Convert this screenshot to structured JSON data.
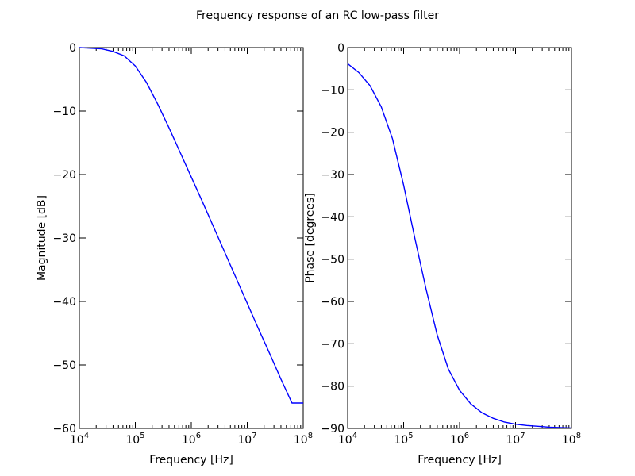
{
  "figure": {
    "title": "Frequency response of an RC low-pass filter"
  },
  "chart_data": [
    {
      "type": "line",
      "xlabel": "Frequency [Hz]",
      "ylabel": "Magnitude [dB]",
      "xscale": "log",
      "xlim": [
        10000,
        100000000
      ],
      "ylim": [
        -60,
        0
      ],
      "xticks": [
        {
          "base": "10",
          "exp": "4"
        },
        {
          "base": "10",
          "exp": "5"
        },
        {
          "base": "10",
          "exp": "6"
        },
        {
          "base": "10",
          "exp": "7"
        },
        {
          "base": "10",
          "exp": "8"
        }
      ],
      "yticks": [
        0,
        -10,
        -20,
        -30,
        -40,
        -50,
        -60
      ],
      "ytick_labels": [
        "0",
        "−10",
        "−20",
        "−30",
        "−40",
        "−50",
        "−60"
      ],
      "grid": false,
      "color": "#0000ff",
      "series": [
        {
          "x": [
            10000,
            15850,
            25120,
            39810,
            63100,
            100000,
            158500,
            251200,
            398100,
            631000,
            1000000,
            1585000,
            2512000,
            3981000,
            6310000,
            10000000,
            15850000,
            25120000,
            39810000,
            63100000,
            100000000
          ],
          "y": [
            -0.0,
            -0.1,
            -0.2,
            -0.6,
            -1.3,
            -2.9,
            -5.5,
            -8.9,
            -12.6,
            -16.5,
            -20.4,
            -24.3,
            -28.3,
            -32.3,
            -36.3,
            -40.3,
            -44.3,
            -48.2,
            -52.2,
            -56.0,
            -56.0
          ]
        }
      ]
    },
    {
      "type": "line",
      "xlabel": "Frequency [Hz]",
      "ylabel": "Phase [degrees]",
      "xscale": "log",
      "xlim": [
        10000,
        100000000
      ],
      "ylim": [
        -90,
        0
      ],
      "xticks": [
        {
          "base": "10",
          "exp": "4"
        },
        {
          "base": "10",
          "exp": "5"
        },
        {
          "base": "10",
          "exp": "6"
        },
        {
          "base": "10",
          "exp": "7"
        },
        {
          "base": "10",
          "exp": "8"
        }
      ],
      "yticks": [
        0,
        -10,
        -20,
        -30,
        -40,
        -50,
        -60,
        -70,
        -80,
        -90
      ],
      "ytick_labels": [
        "0",
        "−10",
        "−20",
        "−30",
        "−40",
        "−50",
        "−60",
        "−70",
        "−80",
        "−90"
      ],
      "grid": false,
      "color": "#0000ff",
      "series": [
        {
          "x": [
            10000,
            15850,
            25120,
            39810,
            63100,
            100000,
            158500,
            251200,
            398100,
            631000,
            1000000,
            1585000,
            2512000,
            3981000,
            6310000,
            10000000,
            15850000,
            25120000,
            39810000,
            63100000,
            100000000
          ],
          "y": [
            -3.8,
            -5.9,
            -9.0,
            -14.0,
            -21.5,
            -32.5,
            -45.0,
            -57.0,
            -67.9,
            -76.0,
            -81.0,
            -84.2,
            -86.3,
            -87.6,
            -88.5,
            -89.0,
            -89.3,
            -89.5,
            -89.7,
            -89.8,
            -89.9
          ]
        }
      ]
    }
  ]
}
